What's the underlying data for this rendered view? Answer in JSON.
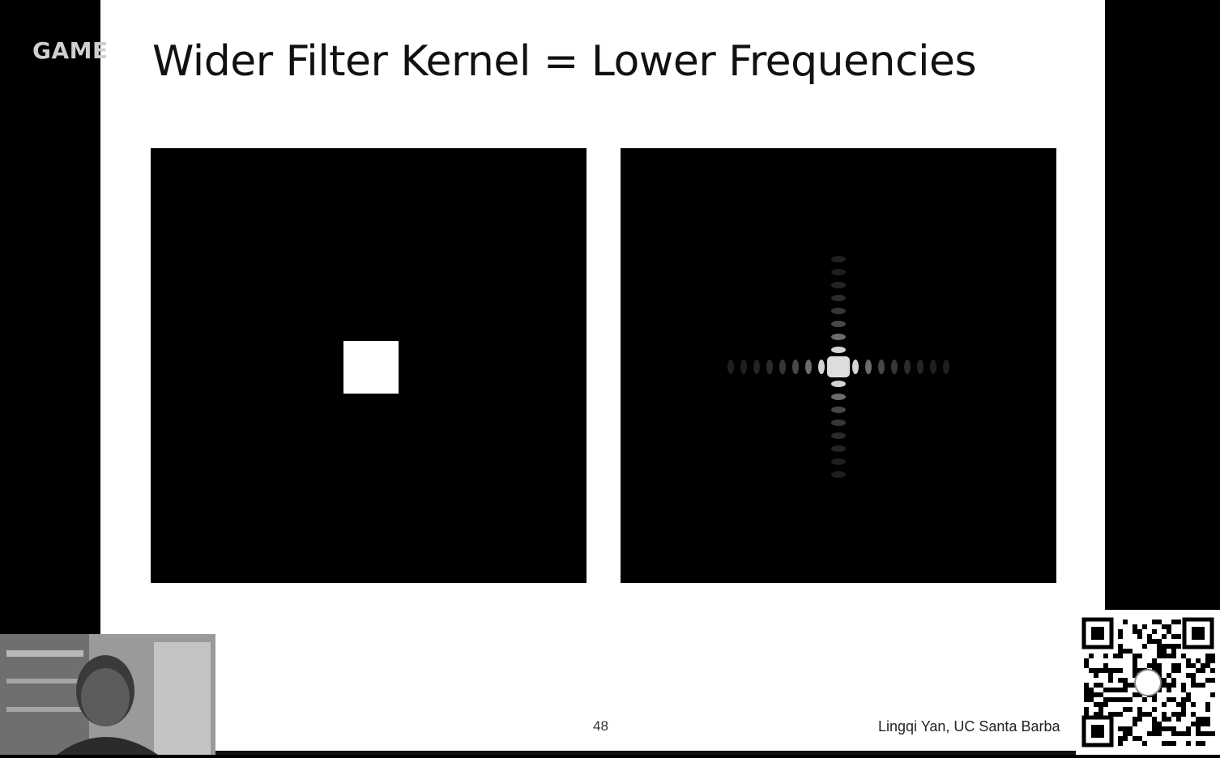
{
  "slide": {
    "title": "Wider Filter Kernel = Lower Frequencies",
    "page_number": "48",
    "author": "Lingqi Yan, UC Santa Barba"
  },
  "overlay": {
    "watermark": "GAME"
  },
  "colors": {
    "slide_bg": "#ffffff",
    "outer_bg": "#000000",
    "panel_bg": "#000000",
    "kernel_color": "#ffffff"
  }
}
